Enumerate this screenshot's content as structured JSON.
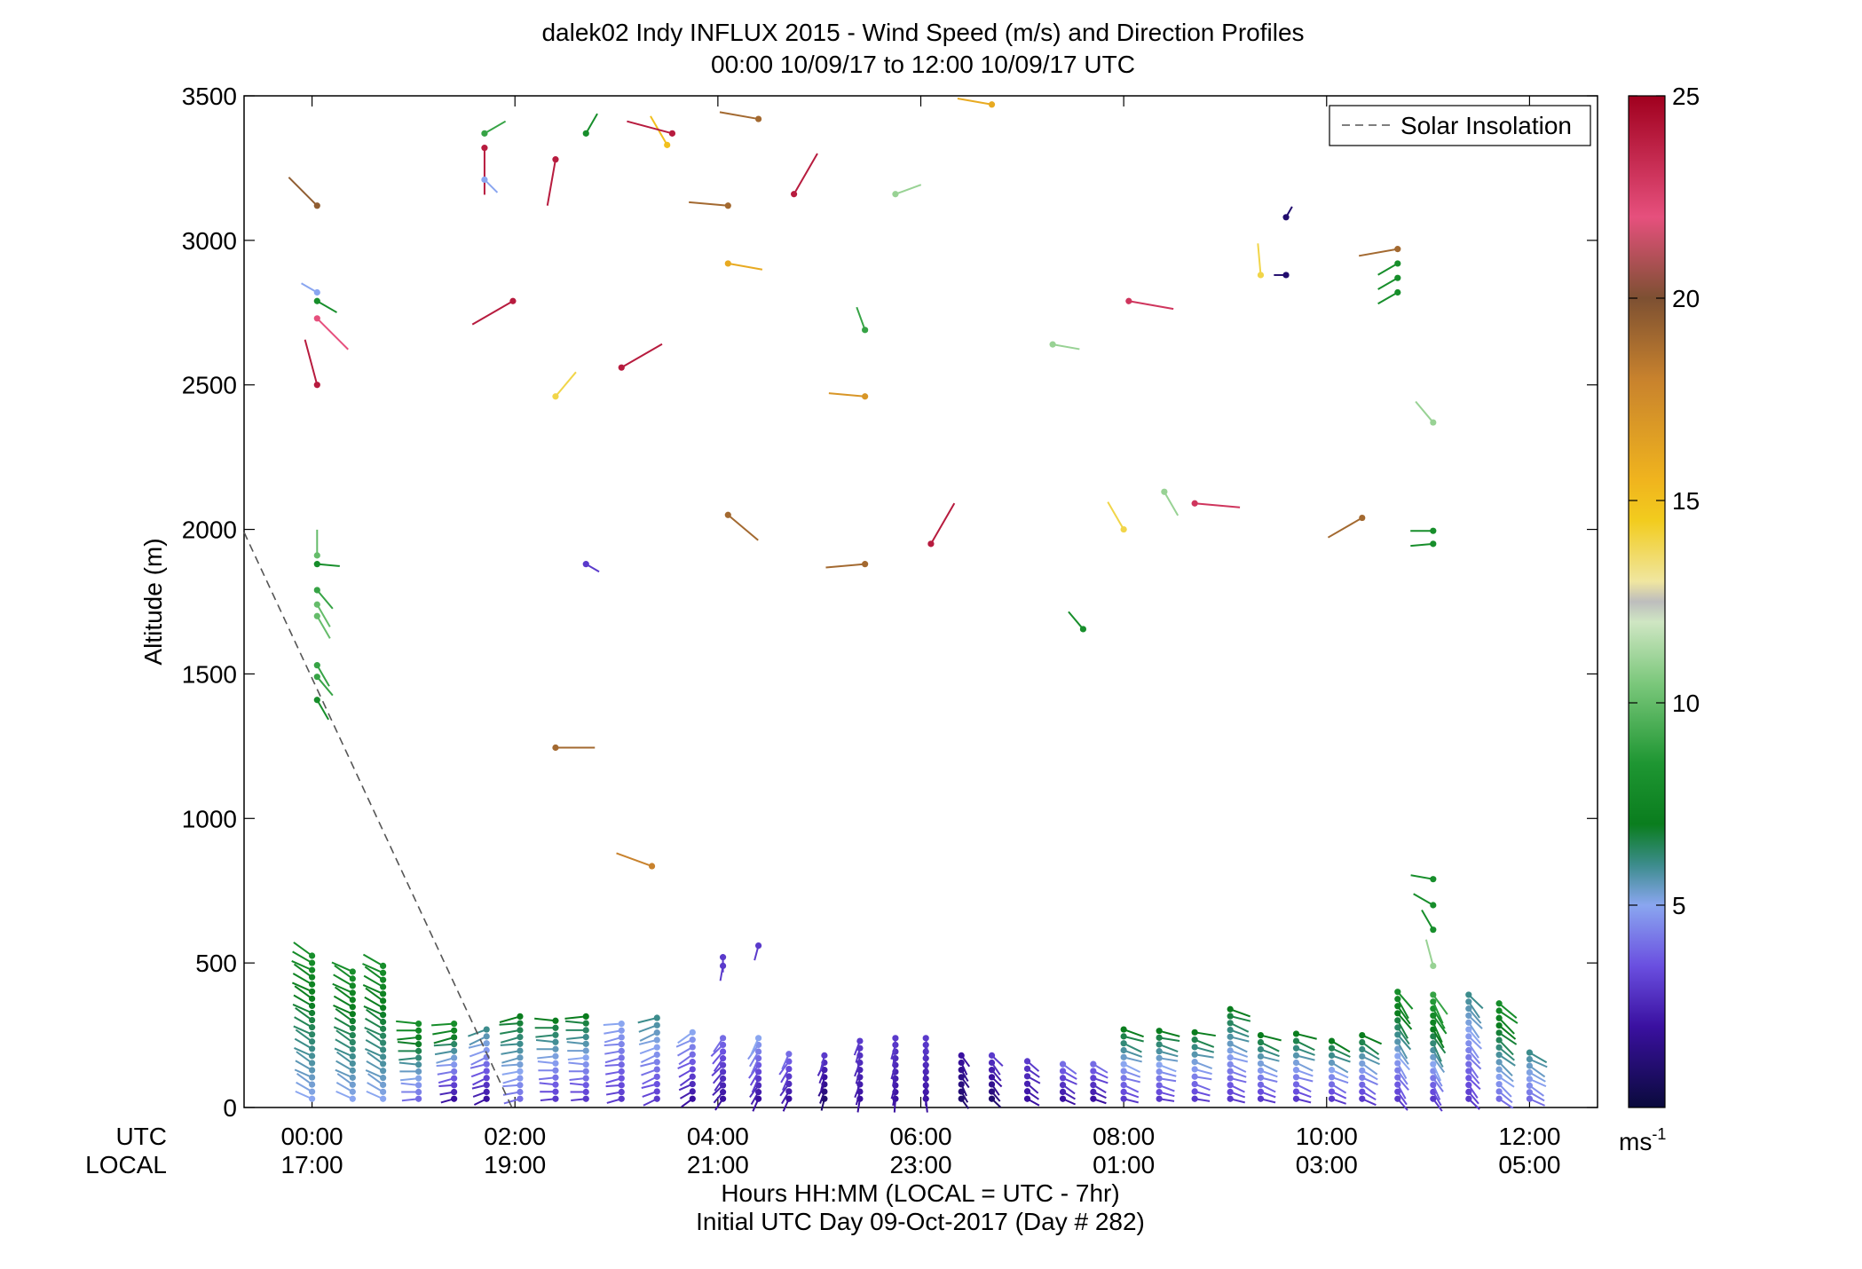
{
  "chart_data": {
    "type": "scatter",
    "title": "dalek02 Indy INFLUX 2015 - Wind Speed (m/s) and Direction Profiles",
    "subtitle": "00:00 10/09/17 to 12:00 10/09/17  UTC",
    "ylabel": "Altitude (m)",
    "xlabel_lines": [
      "Hours HH:MM  (LOCAL = UTC - 7hr)",
      "Initial UTC Day 09-Oct-2017 (Day # 282)"
    ],
    "utc_row_label": "UTC",
    "local_row_label": "LOCAL",
    "xlim": [
      -0.67,
      12.67
    ],
    "ylim": [
      0,
      3500
    ],
    "y_ticks": [
      0,
      500,
      1000,
      1500,
      2000,
      2500,
      3000,
      3500
    ],
    "x_ticks": [
      {
        "hour": 0,
        "utc": "00:00",
        "local": "17:00"
      },
      {
        "hour": 2,
        "utc": "02:00",
        "local": "19:00"
      },
      {
        "hour": 4,
        "utc": "04:00",
        "local": "21:00"
      },
      {
        "hour": 6,
        "utc": "06:00",
        "local": "23:00"
      },
      {
        "hour": 8,
        "utc": "08:00",
        "local": "01:00"
      },
      {
        "hour": 10,
        "utc": "10:00",
        "local": "03:00"
      },
      {
        "hour": 12,
        "utc": "12:00",
        "local": "05:00"
      }
    ],
    "legend": {
      "label": "Solar Insolation",
      "placement": "top-right",
      "style": "dashed"
    },
    "solar_insolation": [
      {
        "hour": -0.67,
        "alt": 1990
      },
      {
        "hour": 1.97,
        "alt": 0
      }
    ],
    "colorbar": {
      "min": 0,
      "max": 25,
      "ticks": [
        5,
        10,
        15,
        20,
        25
      ],
      "unit_base": "ms",
      "unit_exp": "-1"
    },
    "stick_note": "each point: hour (UTC), altitude (m), wind speed (m/s), wind direction (deg, from)",
    "upper_points": [
      [
        0.05,
        3120,
        19.5,
        315
      ],
      [
        0.05,
        2820,
        5,
        300
      ],
      [
        0.05,
        2790,
        8,
        120
      ],
      [
        0.05,
        2730,
        22,
        135
      ],
      [
        0.05,
        2500,
        24,
        345
      ],
      [
        0.05,
        1910,
        10,
        0
      ],
      [
        0.05,
        1880,
        8,
        95
      ],
      [
        0.05,
        1790,
        9,
        140
      ],
      [
        0.05,
        1740,
        10,
        150
      ],
      [
        0.05,
        1700,
        10,
        150
      ],
      [
        0.05,
        1530,
        9,
        150
      ],
      [
        0.05,
        1490,
        9,
        140
      ],
      [
        0.05,
        1410,
        8,
        150
      ],
      [
        1.7,
        3370,
        9,
        60
      ],
      [
        1.7,
        3320,
        24,
        180
      ],
      [
        1.7,
        3210,
        5,
        135
      ],
      [
        1.98,
        2790,
        24,
        240
      ],
      [
        2.4,
        3280,
        24,
        190
      ],
      [
        2.4,
        2460,
        14,
        40
      ],
      [
        2.4,
        1245,
        19,
        90
      ],
      [
        2.7,
        3370,
        8,
        30
      ],
      [
        2.7,
        1880,
        3,
        120
      ],
      [
        3.05,
        2560,
        24,
        60
      ],
      [
        3.35,
        835,
        18,
        290
      ],
      [
        3.5,
        3330,
        15,
        330
      ],
      [
        3.55,
        3370,
        24,
        285
      ],
      [
        4.1,
        3120,
        19,
        275
      ],
      [
        4.4,
        3420,
        19,
        280
      ],
      [
        4.1,
        2920,
        16,
        100
      ],
      [
        4.1,
        2050,
        19,
        130
      ],
      [
        4.05,
        520,
        3,
        180
      ],
      [
        4.05,
        490,
        3,
        190
      ],
      [
        4.4,
        560,
        3,
        195
      ],
      [
        4.75,
        3160,
        24,
        30
      ],
      [
        5.45,
        2690,
        9,
        340
      ],
      [
        5.45,
        2460,
        17,
        275
      ],
      [
        5.45,
        1880,
        19,
        265
      ],
      [
        5.75,
        3160,
        11,
        70
      ],
      [
        6.1,
        1950,
        24,
        30
      ],
      [
        6.7,
        3470,
        16,
        280
      ],
      [
        7.3,
        2640,
        11,
        100
      ],
      [
        7.6,
        1655,
        8,
        320
      ],
      [
        8.0,
        2000,
        14,
        330
      ],
      [
        8.05,
        2790,
        23,
        100
      ],
      [
        8.4,
        2130,
        11,
        150
      ],
      [
        8.7,
        2090,
        23,
        95
      ],
      [
        9.6,
        2880,
        1,
        270
      ],
      [
        9.6,
        3080,
        1,
        30
      ],
      [
        9.35,
        2880,
        14,
        355
      ],
      [
        10.35,
        2040,
        19,
        240
      ],
      [
        10.7,
        2970,
        19,
        260
      ],
      [
        10.7,
        2920,
        8,
        240
      ],
      [
        10.7,
        2870,
        8,
        240
      ],
      [
        10.7,
        2820,
        8,
        240
      ],
      [
        11.05,
        2370,
        11,
        320
      ],
      [
        11.05,
        1995,
        8,
        270
      ],
      [
        11.05,
        1950,
        8,
        265
      ],
      [
        11.05,
        790,
        8,
        280
      ],
      [
        11.05,
        700,
        8,
        300
      ],
      [
        11.05,
        615,
        8,
        330
      ],
      [
        11.05,
        490,
        11,
        345
      ]
    ],
    "low_columns": [
      {
        "hour": 0.0,
        "top": 525,
        "top_speed": 8,
        "bottom_speed": 5,
        "dir": 300
      },
      {
        "hour": 0.4,
        "top": 470,
        "top_speed": 8,
        "bottom_speed": 5,
        "dir": 300
      },
      {
        "hour": 0.7,
        "top": 490,
        "top_speed": 8,
        "bottom_speed": 5,
        "dir": 300
      },
      {
        "hour": 1.05,
        "top": 290,
        "top_speed": 8,
        "bottom_speed": 4,
        "dir": 270
      },
      {
        "hour": 1.4,
        "top": 290,
        "top_speed": 8,
        "bottom_speed": 2,
        "dir": 260
      },
      {
        "hour": 1.72,
        "top": 270,
        "top_speed": 6,
        "bottom_speed": 2,
        "dir": 250
      },
      {
        "hour": 2.05,
        "top": 315,
        "top_speed": 7,
        "bottom_speed": 4,
        "dir": 260
      },
      {
        "hour": 2.4,
        "top": 300,
        "top_speed": 7,
        "bottom_speed": 3,
        "dir": 270
      },
      {
        "hour": 2.7,
        "top": 315,
        "top_speed": 7,
        "bottom_speed": 3,
        "dir": 270
      },
      {
        "hour": 3.05,
        "top": 290,
        "top_speed": 5,
        "bottom_speed": 3,
        "dir": 260
      },
      {
        "hour": 3.4,
        "top": 310,
        "top_speed": 6,
        "bottom_speed": 3,
        "dir": 250
      },
      {
        "hour": 3.75,
        "top": 260,
        "top_speed": 5,
        "bottom_speed": 2,
        "dir": 240
      },
      {
        "hour": 4.05,
        "top": 240,
        "top_speed": 4,
        "bottom_speed": 2,
        "dir": 220
      },
      {
        "hour": 4.4,
        "top": 240,
        "top_speed": 5,
        "bottom_speed": 2,
        "dir": 210
      },
      {
        "hour": 4.7,
        "top": 185,
        "top_speed": 4,
        "bottom_speed": 2,
        "dir": 210
      },
      {
        "hour": 5.05,
        "top": 180,
        "top_speed": 3,
        "bottom_speed": 1,
        "dir": 200
      },
      {
        "hour": 5.4,
        "top": 230,
        "top_speed": 3,
        "bottom_speed": 2,
        "dir": 195
      },
      {
        "hour": 5.75,
        "top": 240,
        "top_speed": 3,
        "bottom_speed": 2,
        "dir": 190
      },
      {
        "hour": 6.05,
        "top": 240,
        "top_speed": 3,
        "bottom_speed": 2,
        "dir": 180
      },
      {
        "hour": 6.4,
        "top": 180,
        "top_speed": 2,
        "bottom_speed": 1,
        "dir": 150
      },
      {
        "hour": 6.7,
        "top": 180,
        "top_speed": 3,
        "bottom_speed": 1,
        "dir": 140
      },
      {
        "hour": 7.05,
        "top": 160,
        "top_speed": 3,
        "bottom_speed": 2,
        "dir": 125
      },
      {
        "hour": 7.4,
        "top": 150,
        "top_speed": 4,
        "bottom_speed": 2,
        "dir": 120
      },
      {
        "hour": 7.7,
        "top": 150,
        "top_speed": 4,
        "bottom_speed": 2,
        "dir": 115
      },
      {
        "hour": 8.0,
        "top": 270,
        "top_speed": 7,
        "bottom_speed": 3,
        "dir": 110
      },
      {
        "hour": 8.35,
        "top": 265,
        "top_speed": 7,
        "bottom_speed": 3,
        "dir": 105
      },
      {
        "hour": 8.7,
        "top": 260,
        "top_speed": 7,
        "bottom_speed": 3,
        "dir": 105
      },
      {
        "hour": 9.05,
        "top": 340,
        "top_speed": 7,
        "bottom_speed": 3,
        "dir": 110
      },
      {
        "hour": 9.35,
        "top": 250,
        "top_speed": 7,
        "bottom_speed": 3,
        "dir": 110
      },
      {
        "hour": 9.7,
        "top": 255,
        "top_speed": 7,
        "bottom_speed": 3,
        "dir": 110
      },
      {
        "hour": 10.05,
        "top": 230,
        "top_speed": 7,
        "bottom_speed": 3,
        "dir": 115
      },
      {
        "hour": 10.35,
        "top": 250,
        "top_speed": 7,
        "bottom_speed": 3,
        "dir": 120
      },
      {
        "hour": 10.7,
        "top": 400,
        "top_speed": 8,
        "bottom_speed": 3,
        "dir": 145
      },
      {
        "hour": 11.05,
        "top": 390,
        "top_speed": 9,
        "bottom_speed": 3,
        "dir": 150
      },
      {
        "hour": 11.4,
        "top": 390,
        "top_speed": 6,
        "bottom_speed": 3,
        "dir": 140
      },
      {
        "hour": 11.7,
        "top": 360,
        "top_speed": 8,
        "bottom_speed": 4,
        "dir": 130
      },
      {
        "hour": 12.0,
        "top": 190,
        "top_speed": 6,
        "bottom_speed": 4,
        "dir": 120
      }
    ]
  }
}
